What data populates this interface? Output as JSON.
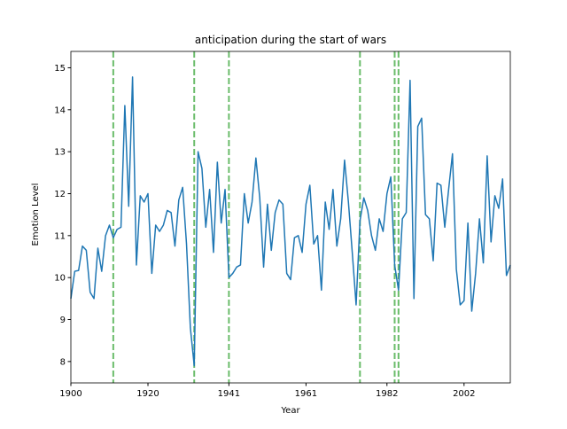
{
  "chart_data": {
    "type": "line",
    "title": "anticipation during the start of wars",
    "x_label": "Year",
    "y_label": "Emotion Level",
    "x": [
      1900,
      1901,
      1902,
      1903,
      1904,
      1905,
      1906,
      1907,
      1908,
      1909,
      1910,
      1911,
      1912,
      1913,
      1914,
      1915,
      1916,
      1917,
      1918,
      1919,
      1920,
      1921,
      1922,
      1923,
      1924,
      1925,
      1926,
      1927,
      1928,
      1929,
      1930,
      1931,
      1932,
      1933,
      1934,
      1935,
      1936,
      1937,
      1938,
      1939,
      1940,
      1941,
      1942,
      1943,
      1944,
      1945,
      1946,
      1947,
      1948,
      1949,
      1950,
      1951,
      1952,
      1953,
      1954,
      1955,
      1956,
      1957,
      1958,
      1959,
      1960,
      1961,
      1962,
      1963,
      1964,
      1965,
      1966,
      1967,
      1968,
      1969,
      1970,
      1971,
      1972,
      1973,
      1974,
      1975,
      1976,
      1977,
      1978,
      1979,
      1980,
      1981,
      1982,
      1983,
      1984,
      1985,
      1986,
      1987,
      1988,
      1989,
      1990,
      1991,
      1992,
      1993,
      1994,
      1995,
      1996,
      1997,
      1998,
      1999,
      2000,
      2001,
      2002,
      2003,
      2004,
      2005,
      2006,
      2007,
      2008,
      2009,
      2010,
      2011,
      2012,
      2013,
      2014
    ],
    "series": [
      {
        "color": "#1f77b4",
        "values": [
          9.5,
          10.15,
          10.17,
          10.75,
          10.65,
          9.65,
          9.5,
          10.7,
          10.15,
          11.0,
          11.25,
          10.95,
          11.15,
          11.2,
          14.1,
          11.7,
          14.78,
          10.3,
          11.95,
          11.8,
          12.0,
          10.1,
          11.25,
          11.1,
          11.25,
          11.6,
          11.55,
          10.75,
          11.85,
          12.15,
          10.8,
          8.8,
          7.9,
          13.0,
          12.6,
          11.2,
          12.1,
          10.6,
          12.75,
          11.3,
          12.1,
          10.0,
          10.1,
          10.25,
          10.3,
          12.0,
          11.3,
          11.8,
          12.85,
          11.9,
          10.25,
          11.75,
          10.65,
          11.55,
          11.85,
          11.75,
          10.1,
          9.95,
          10.95,
          11.0,
          10.6,
          11.75,
          12.2,
          10.8,
          11.0,
          9.7,
          11.8,
          11.15,
          12.1,
          10.75,
          11.4,
          12.8,
          11.8,
          10.6,
          9.35,
          11.35,
          11.9,
          11.6,
          11.0,
          10.65,
          11.4,
          11.1,
          12.0,
          12.4,
          10.3,
          9.7,
          11.4,
          11.55,
          14.7,
          9.5,
          13.6,
          13.8,
          11.5,
          11.4,
          10.4,
          12.25,
          12.2,
          11.2,
          12.1,
          12.95,
          10.2,
          9.35,
          9.45,
          11.3,
          9.2,
          10.1,
          11.4,
          10.35,
          12.9,
          10.85,
          11.95,
          11.65,
          12.35,
          10.05,
          10.3
        ]
      }
    ],
    "war_years": [
      1911,
      1932,
      1941,
      1975,
      1984,
      1985
    ],
    "war_color": "#2ca02c",
    "xlim": [
      1900,
      2014
    ],
    "xticks": [
      1900,
      1920,
      1941,
      1961,
      1982,
      2002
    ],
    "ylim": [
      7.49,
      15.39
    ],
    "yticks": [
      8,
      9,
      10,
      11,
      12,
      13,
      14,
      15
    ]
  }
}
